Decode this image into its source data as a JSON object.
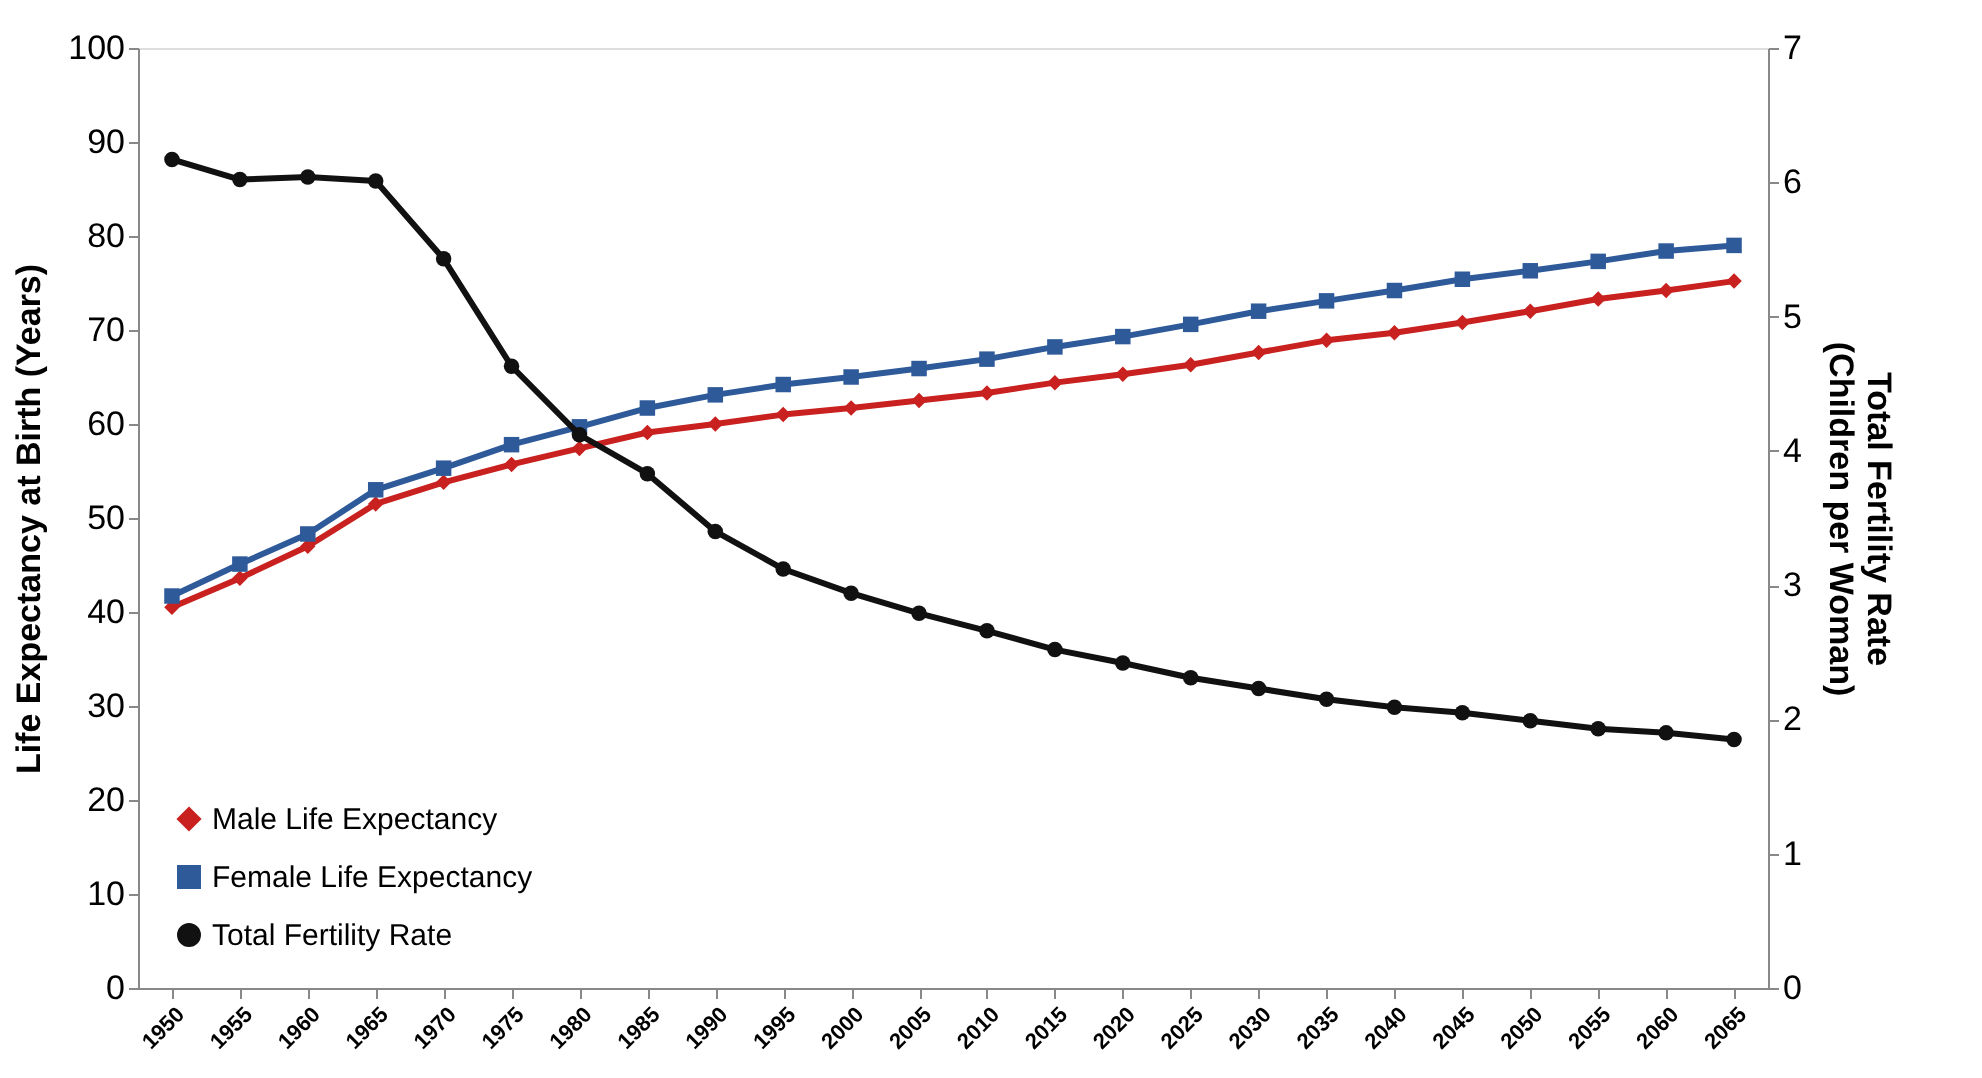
{
  "chart_data": {
    "type": "line",
    "categories": [
      "1950",
      "1955",
      "1960",
      "1965",
      "1970",
      "1975",
      "1980",
      "1985",
      "1990",
      "1995",
      "2000",
      "2005",
      "2010",
      "2015",
      "2020",
      "2025",
      "2030",
      "2035",
      "2040",
      "2045",
      "2050",
      "2055",
      "2060",
      "2065"
    ],
    "ylabel": "Life Expectancy at Birth (Years)",
    "y2label": "Total Fertility Rate\n(Children per Woman)",
    "ylim": [
      0,
      100
    ],
    "yticks": [
      0,
      10,
      20,
      30,
      40,
      50,
      60,
      70,
      80,
      90,
      100
    ],
    "y2lim": [
      0,
      7
    ],
    "y2ticks": [
      0,
      1,
      2,
      3,
      4,
      5,
      6,
      7
    ],
    "grid": false,
    "legend": "bottom left",
    "series": [
      {
        "name": "Male Life Expectancy",
        "color": "#c8211f",
        "marker": "diamond",
        "values": [
          40.5,
          43.6,
          47.0,
          51.5,
          53.8,
          55.7,
          57.4,
          59.1,
          60.0,
          61.0,
          61.7,
          62.5,
          63.3,
          64.4,
          65.3,
          66.3,
          67.6,
          68.9,
          69.7,
          70.8,
          72.0,
          73.3,
          74.2,
          75.2
        ]
      },
      {
        "name": "Female Life Expectancy",
        "color": "#2f5a9a",
        "marker": "square",
        "values": [
          41.7,
          45.1,
          48.3,
          53.0,
          55.3,
          57.8,
          59.7,
          61.7,
          63.1,
          64.2,
          65.0,
          65.9,
          66.9,
          68.2,
          69.3,
          70.6,
          72.0,
          73.1,
          74.2,
          75.4,
          76.3,
          77.3,
          78.4,
          79.0
        ]
      },
      {
        "name": "Total Fertility Rate",
        "color": "#111111",
        "marker": "circle",
        "axis": "y2",
        "values": [
          6.17,
          6.02,
          6.04,
          6.01,
          5.43,
          4.63,
          4.12,
          3.83,
          3.4,
          3.12,
          2.94,
          2.79,
          2.66,
          2.52,
          2.42,
          2.31,
          2.23,
          2.15,
          2.09,
          2.05,
          1.99,
          1.93,
          1.9,
          1.85
        ]
      }
    ]
  }
}
